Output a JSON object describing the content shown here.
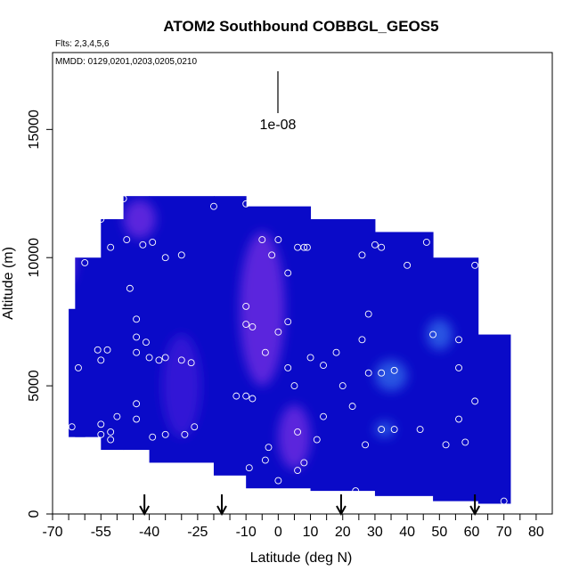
{
  "chart_data": {
    "type": "heatmap",
    "title": "ATOM2 Southbound COBBGL_GEOS5",
    "subtitle_flights": "Flts: 2,3,4,5,6",
    "subtitle_dates": "MMDD: 0129,0201,0203,0205,0210",
    "xlabel": "Latitude (deg N)",
    "ylabel": "Altitude (m)",
    "xlim": [
      -70,
      85
    ],
    "ylim": [
      0,
      18000
    ],
    "x_ticks": [
      -70,
      -55,
      -40,
      -25,
      -10,
      0,
      10,
      20,
      30,
      40,
      50,
      60,
      70,
      80
    ],
    "x_tick_labels": [
      "-70",
      "-55",
      "-40",
      "-25",
      "-10",
      "0",
      "10",
      "20",
      "30",
      "40",
      "50",
      "60",
      "70",
      "80"
    ],
    "y_ticks": [
      0,
      5000,
      10000,
      15000
    ],
    "y_tick_labels": [
      "0",
      "5000",
      "10000",
      "15000"
    ],
    "scale_label": "1e-08",
    "arrow_latitudes": [
      -41.5,
      -17.5,
      19.5,
      61
    ],
    "colors": {
      "low": "#0a0ac8",
      "mid": "#3a18d8",
      "high": "#6a2ae0",
      "bright": "#3060e8",
      "marker": "#ffffff"
    },
    "columns": [
      {
        "lat0": -65,
        "lat1": -60,
        "alt0": 3000,
        "alt1": 8000
      },
      {
        "lat0": -63,
        "lat1": -55,
        "alt0": 3000,
        "alt1": 10000
      },
      {
        "lat0": -55,
        "lat1": -48,
        "alt0": 2500,
        "alt1": 11500
      },
      {
        "lat0": -48,
        "lat1": -40,
        "alt0": 2500,
        "alt1": 12400
      },
      {
        "lat0": -40,
        "lat1": -20,
        "alt0": 2000,
        "alt1": 12400
      },
      {
        "lat0": -20,
        "lat1": -10,
        "alt0": 1500,
        "alt1": 12400
      },
      {
        "lat0": -10,
        "lat1": 10,
        "alt0": 1000,
        "alt1": 12000
      },
      {
        "lat0": 10,
        "lat1": 30,
        "alt0": 900,
        "alt1": 11500
      },
      {
        "lat0": 30,
        "lat1": 48,
        "alt0": 700,
        "alt1": 11000
      },
      {
        "lat0": 48,
        "lat1": 62,
        "alt0": 500,
        "alt1": 10000
      },
      {
        "lat0": 62,
        "lat1": 72,
        "alt0": 400,
        "alt1": 7000
      }
    ],
    "patches": [
      {
        "lat": -43,
        "alt": 11500,
        "w": 10,
        "h": 1500,
        "level": "high"
      },
      {
        "lat": -30,
        "alt": 5000,
        "w": 12,
        "h": 4000,
        "level": "mid"
      },
      {
        "lat": -5,
        "alt": 8000,
        "w": 14,
        "h": 6000,
        "level": "high"
      },
      {
        "lat": 5,
        "alt": 3000,
        "w": 10,
        "h": 2500,
        "level": "high"
      },
      {
        "lat": 33,
        "alt": 3300,
        "w": 6,
        "h": 600,
        "level": "bright"
      },
      {
        "lat": 35,
        "alt": 5400,
        "w": 10,
        "h": 1200,
        "level": "bright"
      },
      {
        "lat": 50,
        "alt": 7000,
        "w": 8,
        "h": 1200,
        "level": "bright"
      },
      {
        "lat": -65,
        "alt": 10000,
        "w": 4,
        "h": 2000,
        "level": "high"
      }
    ],
    "points": [
      [
        -55,
        11500
      ],
      [
        -52,
        11900
      ],
      [
        -48,
        12300
      ],
      [
        -52,
        10400
      ],
      [
        -47,
        10700
      ],
      [
        -42,
        10500
      ],
      [
        -39,
        10600
      ],
      [
        -35,
        10000
      ],
      [
        -30,
        10100
      ],
      [
        -20,
        12000
      ],
      [
        -10,
        12100
      ],
      [
        -5,
        10700
      ],
      [
        -2,
        10100
      ],
      [
        0,
        10700
      ],
      [
        6,
        10400
      ],
      [
        8,
        10400
      ],
      [
        9,
        10400
      ],
      [
        26,
        10100
      ],
      [
        30,
        10500
      ],
      [
        32,
        10400
      ],
      [
        40,
        9700
      ],
      [
        46,
        10600
      ],
      [
        55,
        10300
      ],
      [
        61,
        9700
      ],
      [
        -60,
        9800
      ],
      [
        -46,
        8800
      ],
      [
        -44,
        7600
      ],
      [
        -44,
        6900
      ],
      [
        -41,
        6700
      ],
      [
        -44,
        6300
      ],
      [
        -40,
        6100
      ],
      [
        -37,
        6000
      ],
      [
        -35,
        6100
      ],
      [
        -30,
        6000
      ],
      [
        -27,
        5900
      ],
      [
        -62,
        5700
      ],
      [
        -56,
        6400
      ],
      [
        -53,
        6400
      ],
      [
        -55,
        6000
      ],
      [
        -44,
        4300
      ],
      [
        -44,
        3700
      ],
      [
        -50,
        3800
      ],
      [
        -55,
        3500
      ],
      [
        -52,
        3200
      ],
      [
        -55,
        3100
      ],
      [
        -52,
        2900
      ],
      [
        -39,
        3000
      ],
      [
        -35,
        3100
      ],
      [
        -29,
        3100
      ],
      [
        -26,
        3400
      ],
      [
        -64,
        3400
      ],
      [
        -10,
        8100
      ],
      [
        -10,
        7400
      ],
      [
        -8,
        7300
      ],
      [
        -4,
        6300
      ],
      [
        0,
        7100
      ],
      [
        3,
        9400
      ],
      [
        3,
        7500
      ],
      [
        3,
        5700
      ],
      [
        5,
        5000
      ],
      [
        6,
        3200
      ],
      [
        10,
        6100
      ],
      [
        14,
        5800
      ],
      [
        18,
        6300
      ],
      [
        20,
        5000
      ],
      [
        23,
        4200
      ],
      [
        26,
        6800
      ],
      [
        28,
        7800
      ],
      [
        28,
        5500
      ],
      [
        32,
        5500
      ],
      [
        36,
        5600
      ],
      [
        48,
        7000
      ],
      [
        56,
        6800
      ],
      [
        56,
        5700
      ],
      [
        61,
        4400
      ],
      [
        56,
        3700
      ],
      [
        58,
        2800
      ],
      [
        52,
        2700
      ],
      [
        44,
        3300
      ],
      [
        36,
        3300
      ],
      [
        32,
        3300
      ],
      [
        27,
        2700
      ],
      [
        14,
        3800
      ],
      [
        12,
        2900
      ],
      [
        8,
        2000
      ],
      [
        6,
        1700
      ],
      [
        -3,
        2600
      ],
      [
        -4,
        2100
      ],
      [
        -9,
        1800
      ],
      [
        -13,
        4600
      ],
      [
        -10,
        4600
      ],
      [
        -8,
        4500
      ],
      [
        0,
        1300
      ],
      [
        23,
        700
      ],
      [
        24,
        900
      ],
      [
        70,
        500
      ]
    ]
  }
}
